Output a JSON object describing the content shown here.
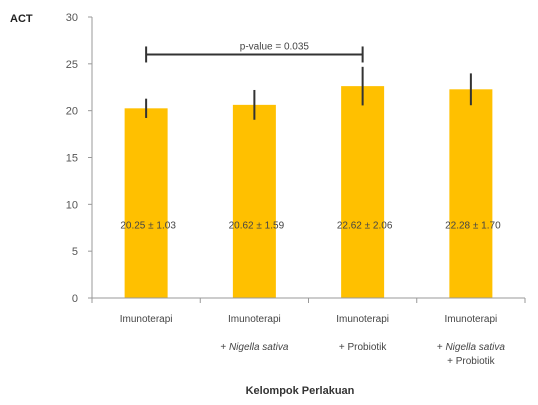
{
  "chart_data": {
    "type": "bar",
    "ylabel": "ACT",
    "xlabel": "Kelompok Perlakuan",
    "ylim": [
      0,
      30
    ],
    "yticks": [
      "0",
      "5",
      "10",
      "15",
      "20",
      "25",
      "30"
    ],
    "categories": [
      [
        "Imunoterapi"
      ],
      [
        "Imunoterapi",
        "+ Nigella sativa"
      ],
      [
        "Imunoterapi",
        "+ Probiotik"
      ],
      [
        "Imunoterapi",
        "+ Nigella sativa",
        "+ Probiotik"
      ]
    ],
    "category_line1": [
      "Imunoterapi",
      "Imunoterapi",
      "Imunoterapi",
      "Imunoterapi"
    ],
    "category_line2": [
      "",
      "+ Nigella sativa",
      "+ Probiotik",
      "+ Nigella sativa"
    ],
    "category_line3": [
      "",
      "",
      "",
      "+ Probiotik"
    ],
    "values": [
      20.25,
      20.62,
      22.62,
      22.28
    ],
    "errors": [
      1.03,
      1.59,
      2.06,
      1.7
    ],
    "data_labels": [
      "20.25 ± 1.03",
      "20.62 ± 1.59",
      "22.62 ± 2.06",
      "22.28 ± 1.70"
    ],
    "annotation": {
      "text": "p-value = 0.035",
      "from_category": 0,
      "to_category": 2,
      "y": 26
    },
    "grid": false,
    "bar_color": "#FFC000",
    "error_color": "#333333",
    "axis_color": "#999999"
  }
}
